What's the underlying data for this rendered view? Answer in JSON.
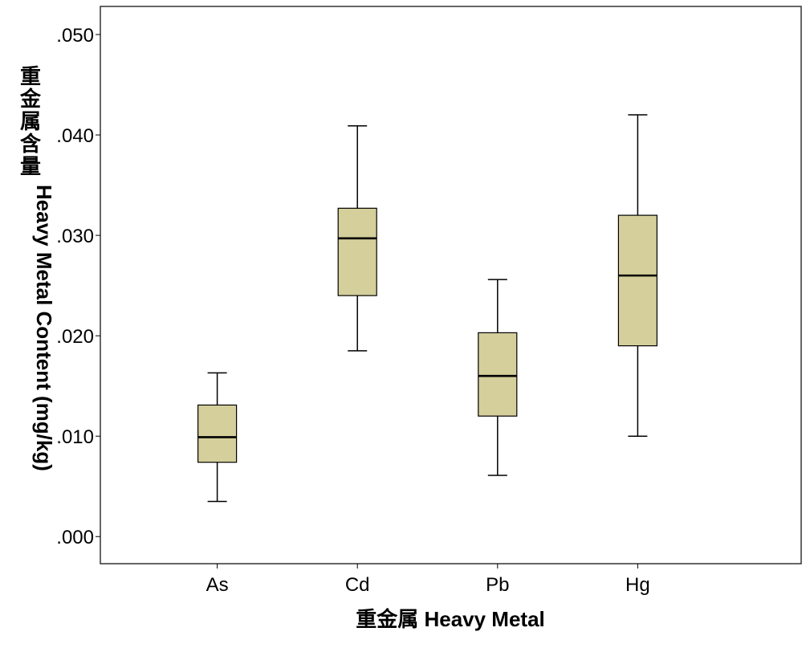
{
  "chart_data": {
    "type": "box",
    "categories": [
      "As",
      "Cd",
      "Pb",
      "Hg"
    ],
    "boxes": [
      {
        "category": "As",
        "whisker_low": 0.0035,
        "q1": 0.0074,
        "median": 0.0099,
        "q3": 0.0131,
        "whisker_high": 0.0163
      },
      {
        "category": "Cd",
        "whisker_low": 0.0185,
        "q1": 0.024,
        "median": 0.0297,
        "q3": 0.0327,
        "whisker_high": 0.0409
      },
      {
        "category": "Pb",
        "whisker_low": 0.0061,
        "q1": 0.012,
        "median": 0.016,
        "q3": 0.0203,
        "whisker_high": 0.0256
      },
      {
        "category": "Hg",
        "whisker_low": 0.01,
        "q1": 0.019,
        "median": 0.026,
        "q3": 0.032,
        "whisker_high": 0.042
      }
    ],
    "ylim": [
      -0.0027,
      0.0528
    ],
    "yticks": [
      0.0,
      0.01,
      0.02,
      0.03,
      0.04,
      0.05
    ],
    "ytick_labels": [
      ".000",
      ".010",
      ".020",
      ".030",
      ".040",
      ".050"
    ],
    "xlabel": "重金属 Heavy Metal",
    "ylabel_cjk": "重金属含量",
    "ylabel": "Heavy Metal Content (mg/kg)",
    "box_color": "#d4cf9b",
    "line_color": "#000000",
    "grid": false,
    "legend": "none"
  }
}
